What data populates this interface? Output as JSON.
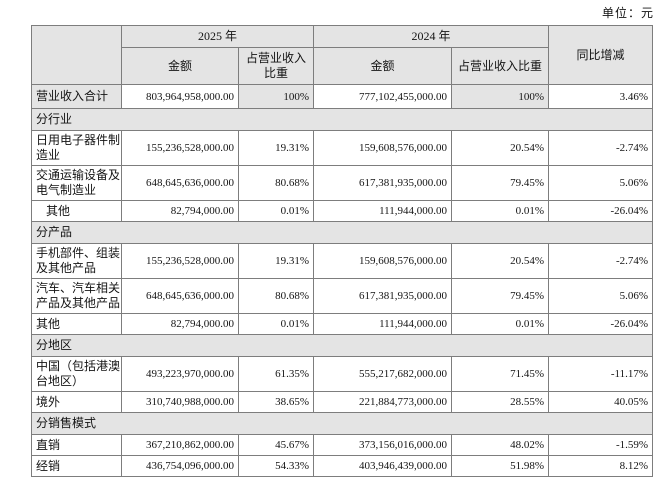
{
  "unit_label": "单位：元",
  "table": {
    "header": {
      "year_2025": "2025 年",
      "year_2024": "2024 年",
      "amount": "金额",
      "pct_ratio": "占营业收入比重",
      "yoy": "同比增减"
    },
    "total_row": {
      "label": "营业收入合计",
      "amount_2025": "803,964,958,000.00",
      "pct_2025": "100%",
      "amount_2024": "777,102,455,000.00",
      "pct_2024": "100%",
      "yoy": "3.46%"
    },
    "sections": [
      {
        "title": "分行业",
        "rows": [
          {
            "label": "日用电子器件制造业",
            "indent": false,
            "amount_2025": "155,236,528,000.00",
            "pct_2025": "19.31%",
            "amount_2024": "159,608,576,000.00",
            "pct_2024": "20.54%",
            "yoy": "-2.74%"
          },
          {
            "label": "交通运输设备及电气制造业",
            "indent": false,
            "amount_2025": "648,645,636,000.00",
            "pct_2025": "80.68%",
            "amount_2024": "617,381,935,000.00",
            "pct_2024": "79.45%",
            "yoy": "5.06%"
          },
          {
            "label": "其他",
            "indent": true,
            "amount_2025": "82,794,000.00",
            "pct_2025": "0.01%",
            "amount_2024": "111,944,000.00",
            "pct_2024": "0.01%",
            "yoy": "-26.04%"
          }
        ]
      },
      {
        "title": "分产品",
        "rows": [
          {
            "label": "手机部件、组装及其他产品",
            "indent": false,
            "amount_2025": "155,236,528,000.00",
            "pct_2025": "19.31%",
            "amount_2024": "159,608,576,000.00",
            "pct_2024": "20.54%",
            "yoy": "-2.74%"
          },
          {
            "label": "汽车、汽车相关产品及其他产品",
            "indent": false,
            "amount_2025": "648,645,636,000.00",
            "pct_2025": "80.68%",
            "amount_2024": "617,381,935,000.00",
            "pct_2024": "79.45%",
            "yoy": "5.06%"
          },
          {
            "label": "其他",
            "indent": false,
            "amount_2025": "82,794,000.00",
            "pct_2025": "0.01%",
            "amount_2024": "111,944,000.00",
            "pct_2024": "0.01%",
            "yoy": "-26.04%"
          }
        ]
      },
      {
        "title": "分地区",
        "rows": [
          {
            "label": "中国（包括港澳台地区）",
            "indent": false,
            "amount_2025": "493,223,970,000.00",
            "pct_2025": "61.35%",
            "amount_2024": "555,217,682,000.00",
            "pct_2024": "71.45%",
            "yoy": "-11.17%"
          },
          {
            "label": "境外",
            "indent": false,
            "amount_2025": "310,740,988,000.00",
            "pct_2025": "38.65%",
            "amount_2024": "221,884,773,000.00",
            "pct_2024": "28.55%",
            "yoy": "40.05%"
          }
        ]
      },
      {
        "title": "分销售模式",
        "rows": [
          {
            "label": "直销",
            "indent": false,
            "amount_2025": "367,210,862,000.00",
            "pct_2025": "45.67%",
            "amount_2024": "373,156,016,000.00",
            "pct_2024": "48.02%",
            "yoy": "-1.59%"
          },
          {
            "label": "经销",
            "indent": false,
            "amount_2025": "436,754,096,000.00",
            "pct_2025": "54.33%",
            "amount_2024": "403,946,439,000.00",
            "pct_2024": "51.98%",
            "yoy": "8.12%"
          }
        ]
      }
    ]
  }
}
